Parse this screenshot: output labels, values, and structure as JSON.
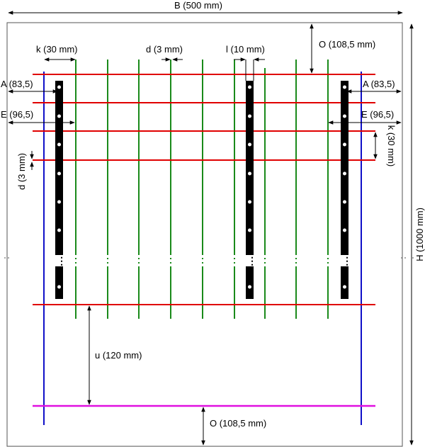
{
  "colors": {
    "background": "#ffffff",
    "frame": "#555555",
    "red_wire": "#e00000",
    "green_wire": "#1a8a1a",
    "blue_post": "#1010c8",
    "magenta_wire": "#e010e0",
    "black_strip": "#000000",
    "dimension": "#000000"
  },
  "labels": {
    "width": "B (500 mm)",
    "height": "H (1000 mm)",
    "top_offset": "O (108,5 mm)",
    "bottom_offset": "O (108,5 mm)",
    "k_horizontal": "k (30 mm)",
    "k_vertical": "k (30 mm)",
    "d_horizontal": "d (3 mm)",
    "d_vertical": "d (3 mm)",
    "l": "l (10 mm)",
    "a_left": "A (83,5)",
    "a_right": "A (83,5)",
    "e_left": "E (96,5)",
    "e_right": "E (96,5)",
    "u": "u (120 mm)",
    "dots": "⋮"
  }
}
